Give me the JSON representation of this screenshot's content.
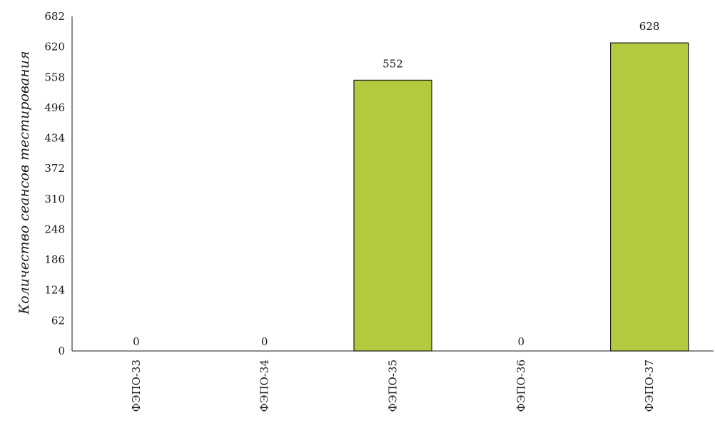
{
  "chart_data": {
    "type": "bar",
    "title": "",
    "xlabel": "",
    "ylabel": "Количество сеансов тестирования",
    "categories": [
      "ФЭПО-33",
      "ФЭПО-34",
      "ФЭПО-35",
      "ФЭПО-36",
      "ФЭПО-37"
    ],
    "values": [
      0,
      0,
      552,
      0,
      628
    ],
    "data_labels": [
      "0",
      "0",
      "552",
      "0",
      "628"
    ],
    "ylim": [
      0,
      682
    ],
    "yticks": [
      0,
      62,
      124,
      186,
      248,
      310,
      372,
      434,
      496,
      558,
      620,
      682
    ],
    "ytick_labels": [
      "0",
      "62",
      "124",
      "186",
      "248",
      "310",
      "372",
      "434",
      "496",
      "558",
      "620",
      "682"
    ],
    "bar_color": "#b2cb3e",
    "bar_edge_color": "#1a1a1a",
    "grid": false,
    "legend": "none"
  }
}
